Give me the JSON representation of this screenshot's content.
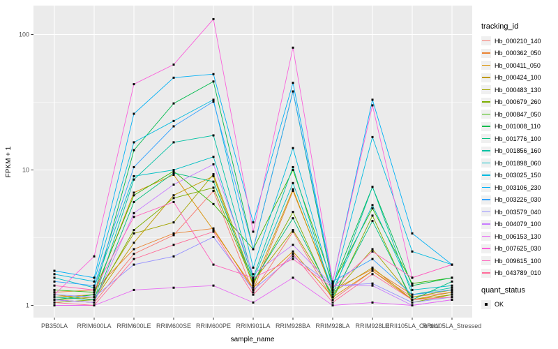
{
  "chart_data": {
    "type": "line",
    "title": "",
    "xlabel": "sample_name",
    "ylabel": "FPKM + 1",
    "y_scale": "log10",
    "ylim": [
      1,
      140
    ],
    "y_ticks": [
      1,
      10,
      100
    ],
    "y_tick_labels": [
      "1",
      "10",
      "100"
    ],
    "y_minor_breaks": [
      3.1623,
      31.623
    ],
    "grid": true,
    "legend": {
      "title": "tracking_id",
      "position": "right"
    },
    "quant_legend": {
      "title": "quant_status",
      "items": [
        {
          "label": "OK",
          "marker": "filled-square"
        }
      ]
    },
    "categories": [
      "PB350LA",
      "RRIM600LA",
      "RRIM600LE",
      "RRIM600SE",
      "RRIM600PE",
      "RRIM901LA",
      "RRIM928BA",
      "RRIM928LA",
      "RRIM928LE",
      "RRII105LA_Control",
      "RRII105LA_Stressed"
    ],
    "series": [
      {
        "name": "Hb_000210_140",
        "color": "#F8766D",
        "values": [
          1.1,
          1.05,
          2.4,
          3.3,
          7.0,
          1.25,
          3.5,
          1.1,
          1.8,
          1.15,
          1.25
        ]
      },
      {
        "name": "Hb_000362_050",
        "color": "#EA8331",
        "values": [
          1.25,
          1.3,
          2.6,
          3.4,
          3.7,
          1.3,
          7.0,
          1.3,
          1.85,
          1.2,
          1.3
        ]
      },
      {
        "name": "Hb_000411_050",
        "color": "#D89000",
        "values": [
          1.15,
          1.2,
          6.8,
          9.2,
          3.6,
          1.35,
          2.5,
          1.15,
          1.8,
          1.1,
          1.2
        ]
      },
      {
        "name": "Hb_000424_100",
        "color": "#C09B00",
        "values": [
          1.2,
          1.1,
          2.9,
          6.5,
          9.0,
          1.4,
          7.2,
          1.25,
          1.9,
          1.1,
          1.25
        ]
      },
      {
        "name": "Hb_000483_130",
        "color": "#A3A500",
        "values": [
          1.1,
          1.15,
          3.4,
          4.1,
          9.3,
          1.5,
          3.6,
          1.2,
          2.6,
          1.15,
          1.3
        ]
      },
      {
        "name": "Hb_000679_260",
        "color": "#7CAE00",
        "values": [
          1.05,
          1.1,
          3.6,
          6.2,
          7.4,
          1.45,
          4.9,
          1.1,
          4.6,
          1.05,
          1.2
        ]
      },
      {
        "name": "Hb_000847_050",
        "color": "#39B600",
        "values": [
          1.3,
          1.25,
          6.5,
          9.8,
          5.6,
          2.6,
          10.0,
          1.45,
          5.2,
          1.45,
          1.6
        ]
      },
      {
        "name": "Hb_001008_110",
        "color": "#00BB4E",
        "values": [
          1.1,
          1.2,
          14.0,
          31.0,
          45.0,
          2.6,
          38.0,
          1.4,
          7.5,
          1.4,
          1.6
        ]
      },
      {
        "name": "Hb_001776_100",
        "color": "#00BF7D",
        "values": [
          1.1,
          1.05,
          5.8,
          9.5,
          8.2,
          1.5,
          4.4,
          1.15,
          4.2,
          1.1,
          1.5
        ]
      },
      {
        "name": "Hb_001856_160",
        "color": "#00C1A3",
        "values": [
          1.15,
          1.1,
          8.5,
          16.0,
          18.0,
          1.6,
          10.5,
          1.2,
          7.5,
          1.2,
          1.35
        ]
      },
      {
        "name": "Hb_001898_060",
        "color": "#00BFC4",
        "values": [
          1.6,
          1.35,
          9.0,
          10.0,
          12.5,
          1.55,
          8.0,
          1.3,
          5.5,
          1.3,
          1.4
        ]
      },
      {
        "name": "Hb_003025_150",
        "color": "#00BAE0",
        "values": [
          1.7,
          1.5,
          16.0,
          23.0,
          33.0,
          1.9,
          14.5,
          1.35,
          17.5,
          2.5,
          2.0
        ]
      },
      {
        "name": "Hb_003106_230",
        "color": "#00B0F6",
        "values": [
          1.8,
          1.6,
          26.0,
          48.0,
          51.0,
          4.1,
          44.0,
          1.5,
          33.0,
          3.4,
          2.0
        ]
      },
      {
        "name": "Hb_003226_030",
        "color": "#35A2FF",
        "values": [
          1.5,
          1.4,
          10.5,
          21.0,
          32.0,
          2.6,
          38.0,
          1.5,
          2.2,
          1.2,
          1.3
        ]
      },
      {
        "name": "Hb_003579_040",
        "color": "#9590FF",
        "values": [
          1.2,
          1.15,
          2.0,
          2.3,
          3.2,
          1.3,
          2.3,
          1.4,
          1.45,
          1.05,
          1.15
        ]
      },
      {
        "name": "Hb_004079_100",
        "color": "#C77CFF",
        "values": [
          1.1,
          1.05,
          4.8,
          7.8,
          11.0,
          1.7,
          2.8,
          1.4,
          1.4,
          1.0,
          1.1
        ]
      },
      {
        "name": "Hb_006153_130",
        "color": "#E76BF3",
        "values": [
          1.0,
          1.0,
          1.3,
          1.35,
          1.4,
          1.05,
          1.6,
          1.0,
          1.05,
          1.0,
          1.1
        ]
      },
      {
        "name": "Hb_007625_030",
        "color": "#FA62DB",
        "values": [
          1.2,
          2.3,
          43.0,
          60.0,
          130.0,
          3.5,
          80.0,
          1.5,
          30.0,
          1.6,
          2.0
        ]
      },
      {
        "name": "Hb_009615_100",
        "color": "#FF62BC",
        "values": [
          1.4,
          1.3,
          4.5,
          5.8,
          2.0,
          1.6,
          2.2,
          1.35,
          2.5,
          1.6,
          2.0
        ]
      },
      {
        "name": "Hb_043789_010",
        "color": "#FF6A98",
        "values": [
          1.05,
          1.0,
          2.2,
          2.8,
          3.5,
          1.2,
          2.4,
          1.05,
          1.7,
          1.1,
          1.15
        ]
      }
    ]
  },
  "colors": {
    "panel_background": "#EBEBEB",
    "gridline": "#FFFFFF",
    "axis_text": "#4D4D4D",
    "axis_title": "#000000",
    "tick_mark": "#333333",
    "point": "#000000",
    "legend_key_background": "#F0F0F0"
  }
}
